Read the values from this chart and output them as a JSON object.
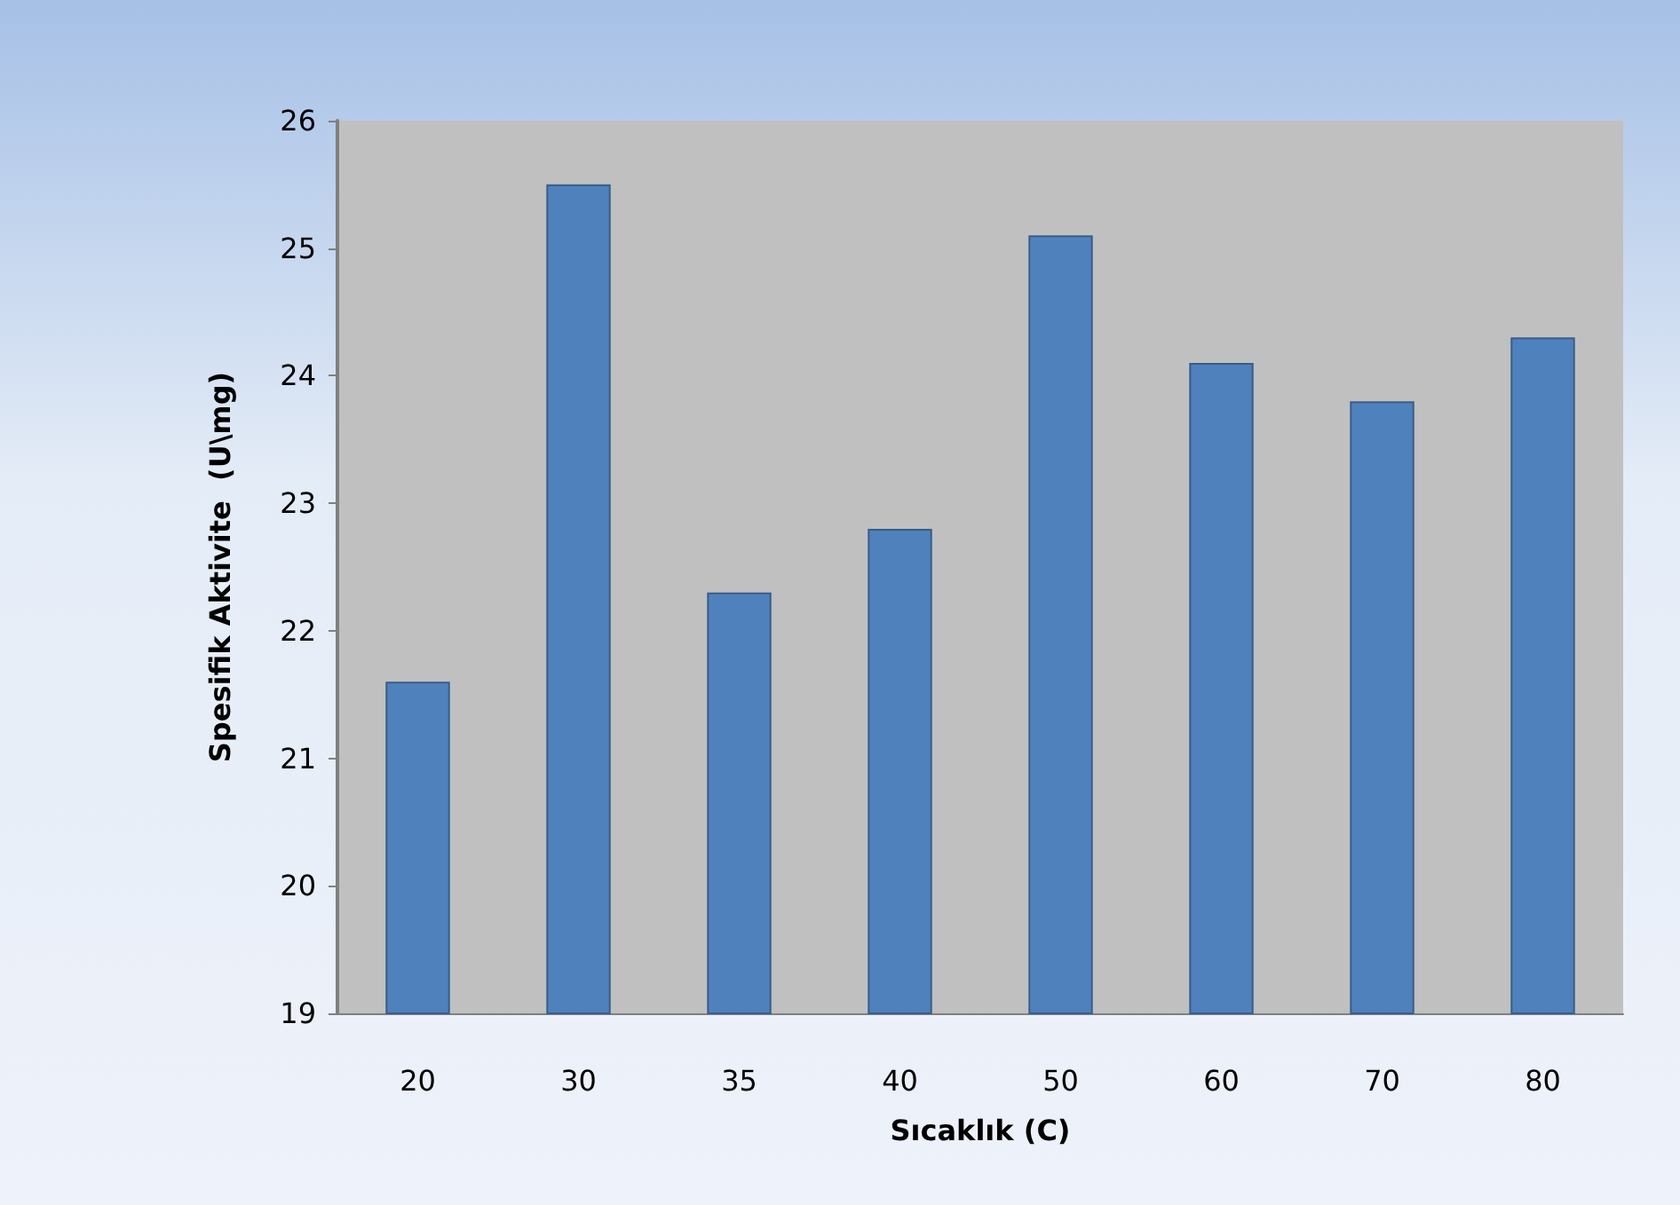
{
  "chart_data": {
    "type": "bar",
    "xlabel": "Sıcaklık (C)",
    "ylabel": "Spesifik Aktivite  (U\\mg)",
    "categories": [
      "20",
      "30",
      "35",
      "40",
      "50",
      "60",
      "70",
      "80"
    ],
    "values": [
      21.6,
      25.5,
      22.3,
      22.8,
      25.1,
      24.1,
      23.8,
      24.3
    ],
    "color": "#4f81bd",
    "ylim": [
      19,
      26
    ],
    "yticks": [
      19,
      20,
      21,
      22,
      23,
      24,
      25,
      26
    ],
    "grid": false
  }
}
